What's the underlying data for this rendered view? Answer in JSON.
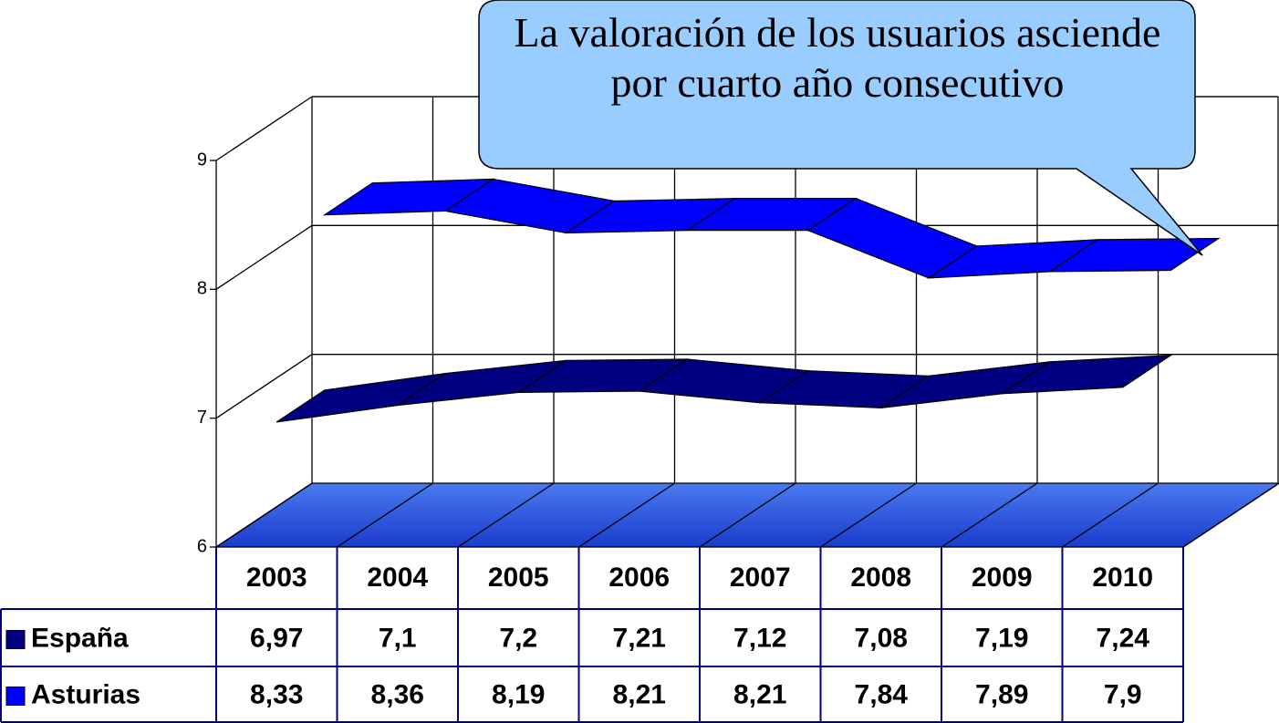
{
  "chart_data": {
    "type": "line3d",
    "annotation": "La valoración de los usuarios asciende por cuarto año consecutivo",
    "categories": [
      "2003",
      "2004",
      "2005",
      "2006",
      "2007",
      "2008",
      "2009",
      "2010"
    ],
    "series": [
      {
        "name": "España",
        "color": "#000080",
        "values": [
          6.97,
          7.1,
          7.2,
          7.21,
          7.12,
          7.08,
          7.19,
          7.24
        ],
        "value_labels": [
          "6,97",
          "7,1",
          "7,2",
          "7,21",
          "7,12",
          "7,08",
          "7,19",
          "7,24"
        ]
      },
      {
        "name": "Asturias",
        "color": "#0000ff",
        "values": [
          8.33,
          8.36,
          8.19,
          8.21,
          8.21,
          7.84,
          7.89,
          7.9
        ],
        "value_labels": [
          "8,33",
          "8,36",
          "8,19",
          "8,21",
          "8,21",
          "7,84",
          "7,89",
          "7,9"
        ]
      }
    ],
    "ylim": [
      6,
      9
    ],
    "yticks": [
      6,
      7,
      8,
      9
    ],
    "grid": true
  }
}
